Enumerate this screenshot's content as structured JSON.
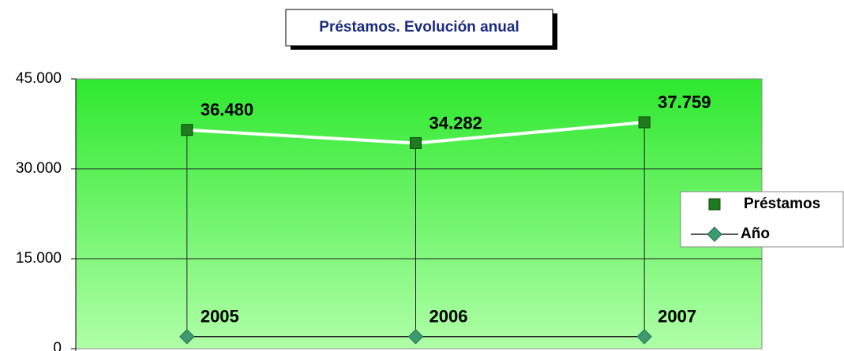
{
  "chart_data": {
    "type": "line",
    "title": "Préstamos. Evolución anual",
    "categories": [
      null,
      null,
      null
    ],
    "series": [
      {
        "name": "Préstamos",
        "color": "#1e7b1e",
        "line_color": "#ffffff",
        "marker": "square",
        "values": [
          36480,
          34282,
          37759
        ],
        "value_labels": [
          "36.480",
          "34.282",
          "37.759"
        ]
      },
      {
        "name": "Año",
        "color": "#3d9970",
        "line_color": "#222222",
        "marker": "diamond",
        "values": [
          2005,
          2006,
          2007
        ]
      }
    ],
    "ylim": [
      0,
      45000
    ],
    "yticks": [
      0,
      {
        "value": 15000,
        "label": "15.000"
      },
      {
        "value": 30000,
        "label": "30.000"
      },
      {
        "value": 45000,
        "label": "45.000"
      }
    ],
    "grid": true,
    "drop_lines": true,
    "legend": "right"
  }
}
